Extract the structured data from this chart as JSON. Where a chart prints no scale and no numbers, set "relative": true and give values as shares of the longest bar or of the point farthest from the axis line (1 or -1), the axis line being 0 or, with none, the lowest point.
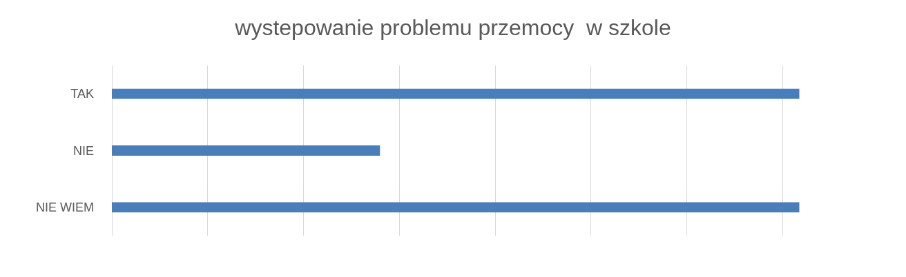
{
  "chart_data": {
    "type": "bar",
    "title": "wystepowanie problemu przemocy  w szkole",
    "orientation": "horizontal",
    "relative": true,
    "grid": "x",
    "categories": [
      "TAK",
      "NIE",
      "NIE WIEM"
    ],
    "values": [
      1,
      0.39,
      1
    ],
    "color": "#4a7ebb"
  }
}
